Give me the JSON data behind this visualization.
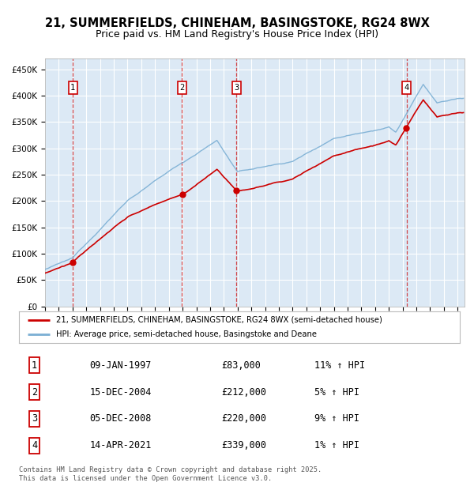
{
  "title": "21, SUMMERFIELDS, CHINEHAM, BASINGSTOKE, RG24 8WX",
  "subtitle": "Price paid vs. HM Land Registry's House Price Index (HPI)",
  "ylabel_ticks": [
    "£0",
    "£50K",
    "£100K",
    "£150K",
    "£200K",
    "£250K",
    "£300K",
    "£350K",
    "£400K",
    "£450K"
  ],
  "ytick_values": [
    0,
    50000,
    100000,
    150000,
    200000,
    250000,
    300000,
    350000,
    400000,
    450000
  ],
  "ylim": [
    0,
    470000
  ],
  "xlim_start": 1995.0,
  "xlim_end": 2025.5,
  "plot_bg_color": "#dce9f5",
  "grid_color": "#ffffff",
  "red_line_color": "#cc0000",
  "blue_line_color": "#7bafd4",
  "sale_markers": [
    {
      "year": 1997.03,
      "price": 83000,
      "label": "1"
    },
    {
      "year": 2004.96,
      "price": 212000,
      "label": "2"
    },
    {
      "year": 2008.92,
      "price": 220000,
      "label": "3"
    },
    {
      "year": 2021.28,
      "price": 339000,
      "label": "4"
    }
  ],
  "table_entries": [
    {
      "num": "1",
      "date": "09-JAN-1997",
      "price": "£83,000",
      "hpi": "11% ↑ HPI"
    },
    {
      "num": "2",
      "date": "15-DEC-2004",
      "price": "£212,000",
      "hpi": "5% ↑ HPI"
    },
    {
      "num": "3",
      "date": "05-DEC-2008",
      "price": "£220,000",
      "hpi": "9% ↑ HPI"
    },
    {
      "num": "4",
      "date": "14-APR-2021",
      "price": "£339,000",
      "hpi": "1% ↑ HPI"
    }
  ],
  "legend_entries": [
    "21, SUMMERFIELDS, CHINEHAM, BASINGSTOKE, RG24 8WX (semi-detached house)",
    "HPI: Average price, semi-detached house, Basingstoke and Deane"
  ],
  "footnote": "Contains HM Land Registry data © Crown copyright and database right 2025.\nThis data is licensed under the Open Government Licence v3.0.",
  "title_fontsize": 10.5,
  "subtitle_fontsize": 9
}
